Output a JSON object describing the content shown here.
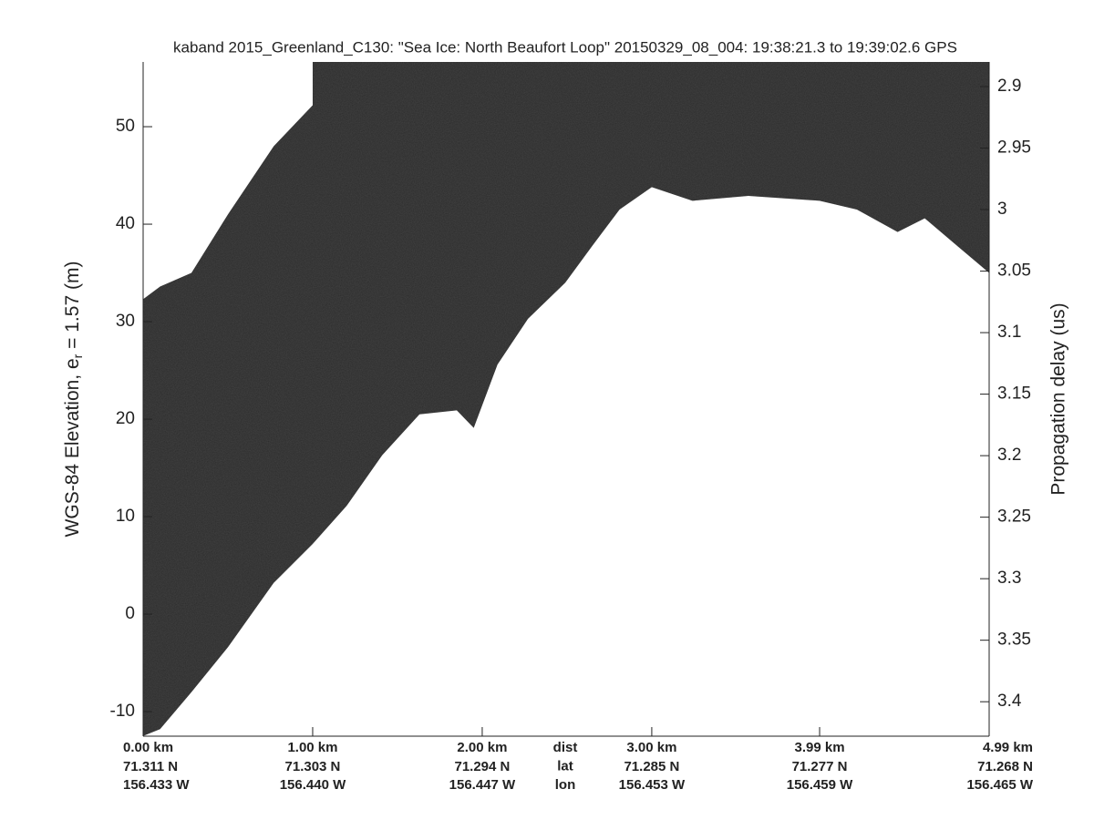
{
  "chart_data": {
    "type": "echogram",
    "title": "kaband 2015_Greenland_C130: \"Sea Ice: North Beaufort Loop\"  20150329_08_004: 19:38:21.3 to 19:39:02.6 GPS",
    "ylabel": "WGS-84 Elevation, e",
    "ylabel_sub": "r",
    "ylabel_end": " = 1.57 (m)",
    "y2label": "Propagation delay (us)",
    "x": [
      0,
      0.1,
      0.285,
      0.5,
      0.77,
      1.0,
      1.2,
      1.41,
      1.63,
      1.85,
      1.95,
      2.09,
      2.27,
      2.49,
      2.65,
      2.81,
      3.0,
      3.24,
      3.57,
      3.99,
      4.21,
      4.45,
      4.61,
      4.8,
      4.99
    ],
    "series": [
      {
        "color": "#ffffff",
        "values": [
          32.3,
          33.6,
          35,
          41,
          48,
          52.2,
          null,
          null,
          null,
          null,
          null,
          null,
          null,
          null,
          null,
          null,
          null,
          null,
          null,
          null,
          null,
          null,
          null,
          null,
          null
        ]
      },
      {
        "color": "#2a2a2a",
        "values": [
          -12.5,
          -11.8,
          -8,
          -3.4,
          3.2,
          7.2,
          11.1,
          16.3,
          20.5,
          20.9,
          19.1,
          25.6,
          30.3,
          34,
          37.8,
          41.5,
          43.8,
          42.4,
          42.9,
          42.4,
          41.5,
          39.2,
          40.6,
          37.8,
          35
        ]
      }
    ],
    "xlim": [
      0,
      4.99
    ],
    "xticks": [
      {
        "value": 0,
        "label": "0.00 km"
      },
      {
        "value": 1,
        "label": "1.00 km"
      },
      {
        "value": 2,
        "label": "2.00 km"
      },
      {
        "value": 3,
        "label": "3.00 km"
      },
      {
        "value": 3.99,
        "label": "3.99 km"
      },
      {
        "value": 4.99,
        "label": "4.99 km"
      }
    ],
    "lat_labels": [
      "71.311 N",
      "71.303 N",
      "71.294 N",
      "71.285 N",
      "71.277 N",
      "71.268 N"
    ],
    "lon_labels": [
      "156.433 W",
      "156.440 W",
      "156.447 W",
      "156.453 W",
      "156.459 W",
      "156.465 W"
    ],
    "row_names": [
      "dist",
      "lat",
      "lon"
    ],
    "ylim": [
      -12.52,
      56.64
    ],
    "yticks": [
      -10,
      0,
      10,
      20,
      30,
      40,
      50
    ],
    "y2lim": [
      3.428,
      2.88
    ],
    "y2ticks": [
      2.9,
      2.95,
      3,
      3.05,
      3.1,
      3.15,
      3.2,
      3.25,
      3.3,
      3.35,
      3.4
    ]
  }
}
